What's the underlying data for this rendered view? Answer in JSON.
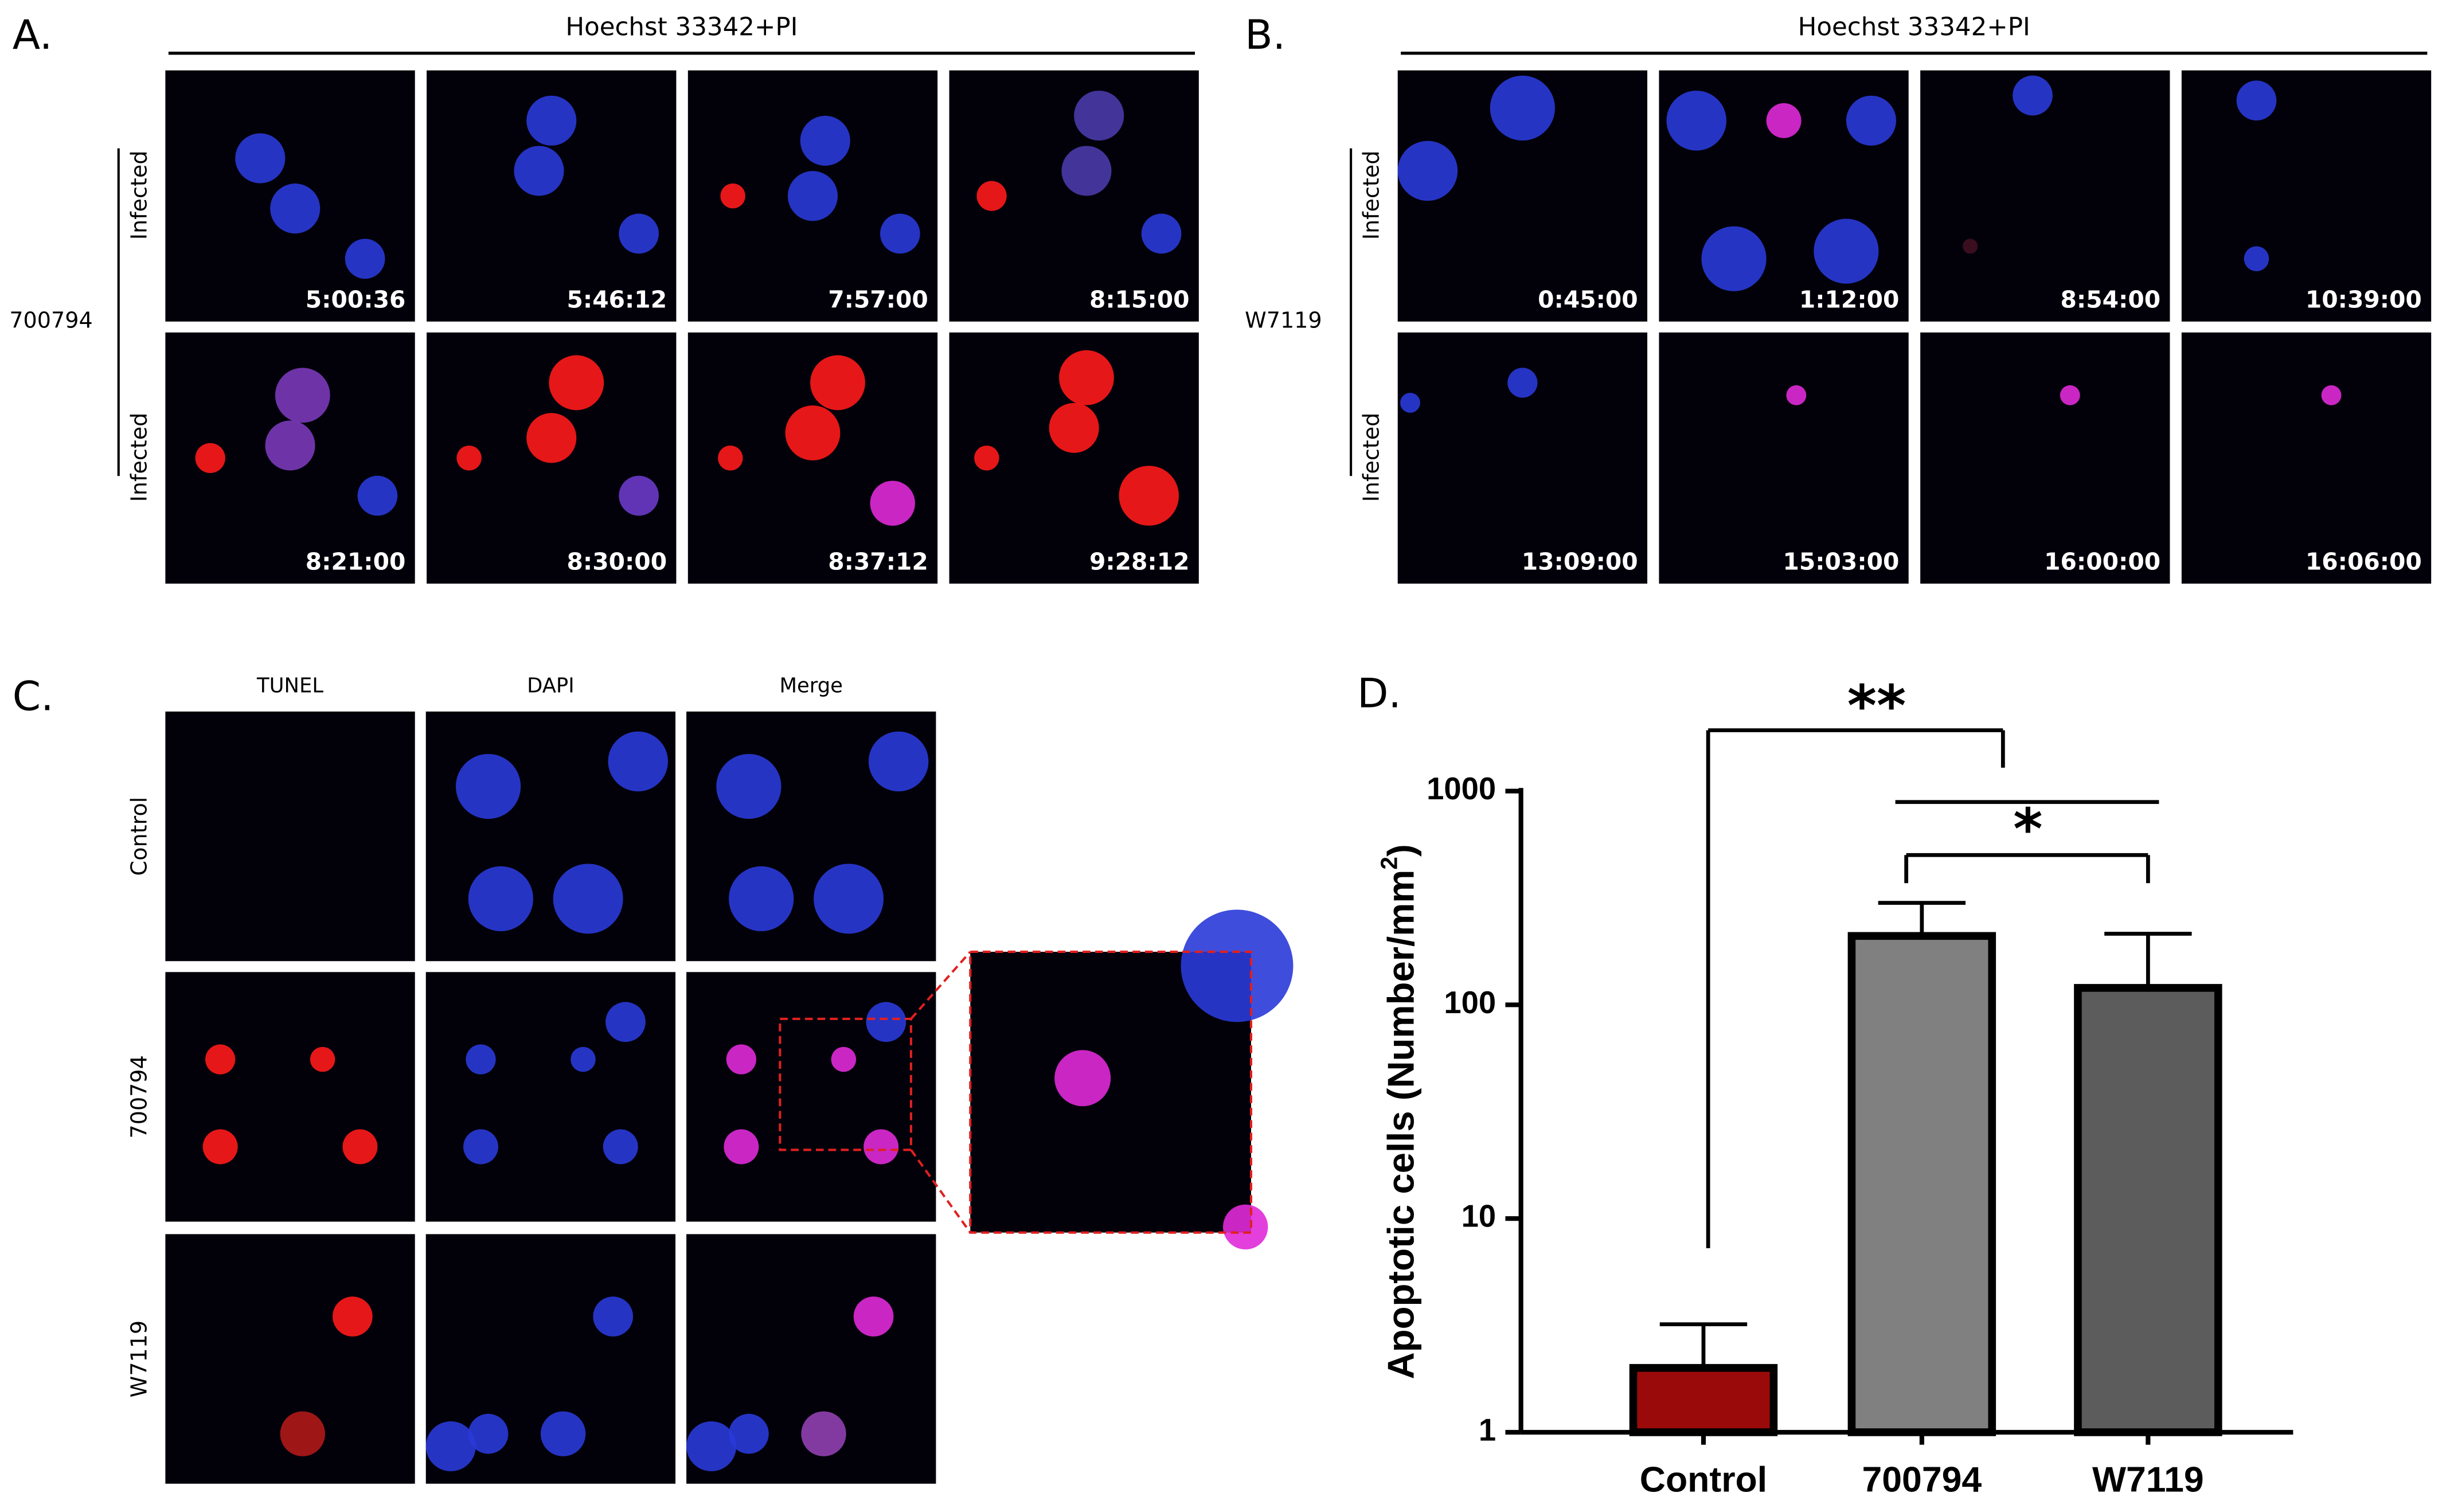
{
  "panels": {
    "A": {
      "label": "A.",
      "title": "Hoechst 33342+PI",
      "strain": "700794",
      "rows": [
        "Infected",
        "Infected"
      ],
      "times": [
        "5:00:36",
        "5:46:12",
        "7:57:00",
        "8:15:00",
        "8:21:00",
        "8:30:00",
        "8:37:12",
        "9:28:12"
      ]
    },
    "B": {
      "label": "B.",
      "title": "Hoechst 33342+PI",
      "strain": "W7119",
      "rows": [
        "Infected",
        "Infected"
      ],
      "times": [
        "0:45:00",
        "1:12:00",
        "8:54:00",
        "10:39:00",
        "13:09:00",
        "15:03:00",
        "16:00:00",
        "16:06:00"
      ]
    },
    "C": {
      "label": "C.",
      "columns": [
        "TUNEL",
        "DAPI",
        "Merge"
      ],
      "rows": [
        "Control",
        "700794",
        "W7119"
      ]
    },
    "D": {
      "label": "D."
    }
  },
  "chart_data": {
    "type": "bar",
    "log_scale": true,
    "y_label": [
      "Apoptotic cells (Number/mm",
      "2",
      ")"
    ],
    "categories": [
      "Control",
      "700794",
      "W7119"
    ],
    "values": [
      2,
      210,
      120
    ],
    "errors": [
      1.2,
      90,
      95
    ],
    "colors": [
      "#9b0a0a",
      "#808080",
      "#5c5c5c"
    ],
    "ylim": [
      1,
      1000
    ],
    "yticks": [
      1,
      10,
      100,
      1000
    ],
    "annotations": [
      {
        "text": "**"
      },
      {
        "text": "*"
      }
    ]
  }
}
